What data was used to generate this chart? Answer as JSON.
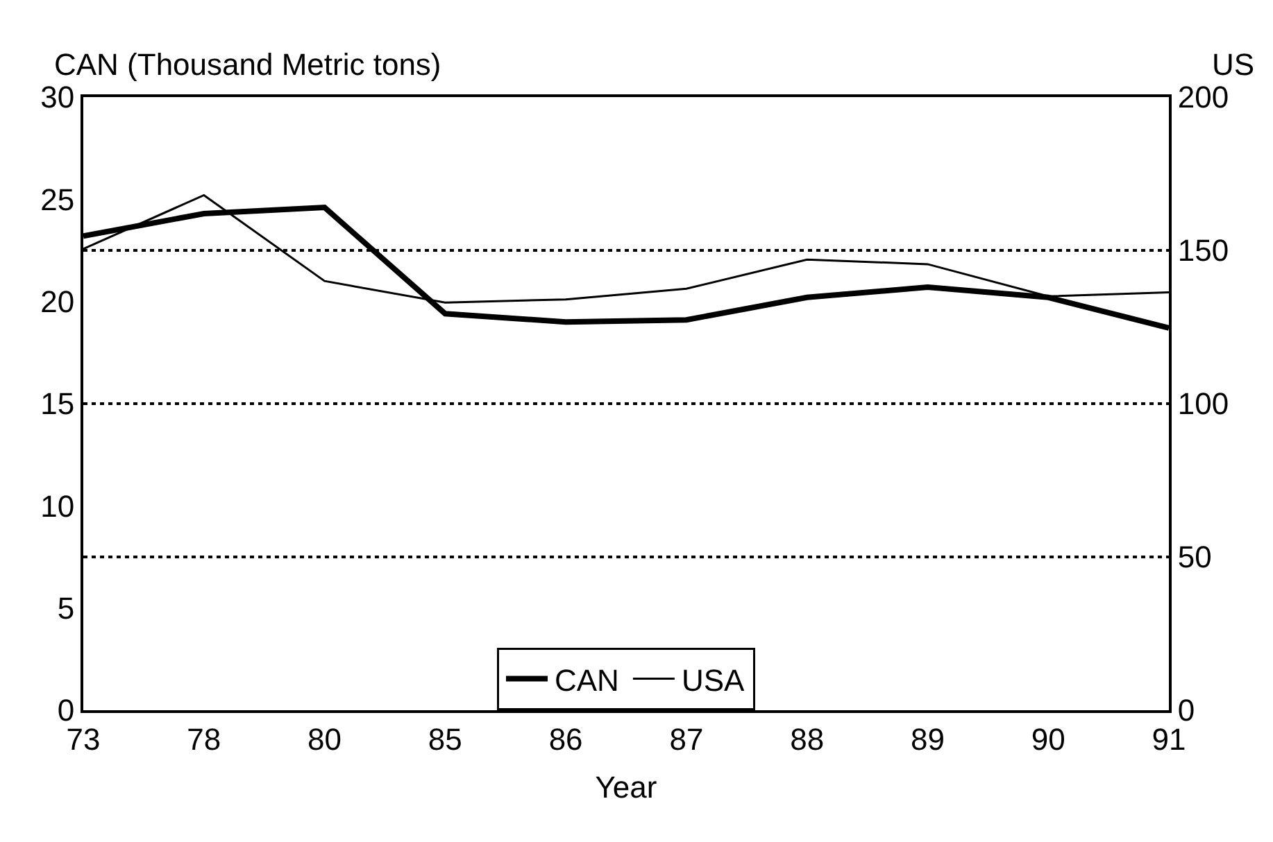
{
  "chart_data": {
    "type": "line",
    "ylabel": "CAN (Thousand Metric tons)",
    "y2label": "US",
    "xlabel": "Year",
    "categories": [
      "73",
      "78",
      "80",
      "85",
      "86",
      "87",
      "88",
      "89",
      "90",
      "91"
    ],
    "series": [
      {
        "name": "CAN",
        "color": "#000000",
        "values": [
          23.2,
          24.3,
          24.6,
          19.4,
          19.0,
          19.1,
          20.2,
          20.7,
          20.2,
          18.7
        ]
      },
      {
        "name": "USA",
        "color": "#000000",
        "axis": "y2",
        "values": [
          150.5,
          168,
          140,
          133,
          134,
          137.5,
          147,
          145.5,
          135,
          136.3
        ]
      }
    ],
    "ylim": [
      0,
      30
    ],
    "yticks": [
      0,
      5,
      10,
      15,
      20,
      25,
      30
    ],
    "y2lim": [
      0,
      200
    ],
    "y2ticks": [
      0,
      50,
      100,
      150,
      200
    ],
    "ref_lines": [
      {
        "axis": "y2",
        "value": 50,
        "line_style": "dotted",
        "color": "#000000"
      },
      {
        "axis": "y2",
        "value": 100,
        "line_style": "dotted",
        "color": "#000000"
      },
      {
        "axis": "y2",
        "value": 150,
        "line_style": "dotted",
        "color": "#000000"
      }
    ],
    "legend": "bottom",
    "grid": false,
    "marker": "none",
    "line_style": "solid"
  }
}
